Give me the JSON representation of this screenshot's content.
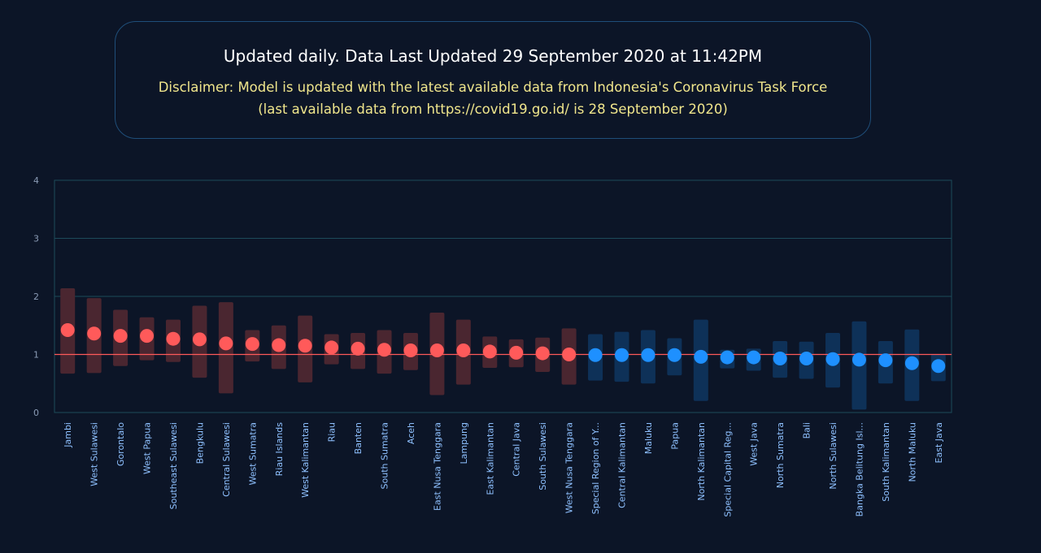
{
  "header": {
    "update_text": "Updated daily. Data Last Updated 29 September 2020 at 11:42PM",
    "disclaimer_line1": "Disclaimer: Model is updated with the latest available data from Indonesia's Coronavirus Task Force",
    "disclaimer_line2": "(last available data from https://covid19.go.id/ is 28 September 2020)"
  },
  "colors": {
    "above_point": "#ff5a5a",
    "above_band": "#4a2630",
    "below_point": "#1e90ff",
    "below_band": "#0e3158",
    "reference_line": "#ff5a5a",
    "grid": "#1d4a5a",
    "axis_text": "#8a9bb5",
    "label_text": "#8fc1ff"
  },
  "chart_data": {
    "type": "scatter",
    "title": "",
    "xlabel": "",
    "ylabel": "",
    "ylim": [
      0,
      4
    ],
    "yticks": [
      0,
      1,
      2,
      3,
      4
    ],
    "reference_line": 1,
    "grid": true,
    "categories": [
      "Jambi",
      "West Sulawesi",
      "Gorontalo",
      "West Papua",
      "Southeast Sulawesi",
      "Bengkulu",
      "Central Sulawesi",
      "West Sumatra",
      "Riau Islands",
      "West Kalimantan",
      "Riau",
      "Banten",
      "South Sumatra",
      "Aceh",
      "East Nusa Tenggara",
      "Lampung",
      "East Kalimantan",
      "Central Java",
      "South Sulawesi",
      "West Nusa Tenggara",
      "Special Region of Y...",
      "Central Kalimantan",
      "Maluku",
      "Papua",
      "North Kalimantan",
      "Special Capital Reg...",
      "West Java",
      "North Sumatra",
      "Bali",
      "North Sulawesi",
      "Bangka Belitung Isl...",
      "South Kalimantan",
      "North Maluku",
      "East Java"
    ],
    "values": [
      1.42,
      1.36,
      1.32,
      1.32,
      1.27,
      1.26,
      1.19,
      1.18,
      1.16,
      1.15,
      1.12,
      1.1,
      1.08,
      1.07,
      1.07,
      1.07,
      1.05,
      1.03,
      1.02,
      1.0,
      0.99,
      0.99,
      0.99,
      0.99,
      0.96,
      0.95,
      0.95,
      0.93,
      0.93,
      0.92,
      0.91,
      0.9,
      0.85,
      0.8
    ],
    "lower": [
      0.67,
      0.68,
      0.8,
      0.9,
      0.87,
      0.6,
      0.33,
      0.88,
      0.75,
      0.52,
      0.83,
      0.75,
      0.67,
      0.73,
      0.3,
      0.48,
      0.77,
      0.78,
      0.7,
      0.48,
      0.55,
      0.53,
      0.5,
      0.64,
      0.2,
      0.76,
      0.72,
      0.6,
      0.58,
      0.43,
      0.05,
      0.5,
      0.2,
      0.54
    ],
    "upper": [
      2.14,
      1.97,
      1.77,
      1.64,
      1.6,
      1.84,
      1.9,
      1.42,
      1.5,
      1.67,
      1.35,
      1.37,
      1.42,
      1.37,
      1.72,
      1.6,
      1.31,
      1.26,
      1.29,
      1.45,
      1.35,
      1.39,
      1.42,
      1.28,
      1.6,
      1.08,
      1.1,
      1.23,
      1.22,
      1.37,
      1.57,
      1.23,
      1.43,
      1.0
    ]
  }
}
